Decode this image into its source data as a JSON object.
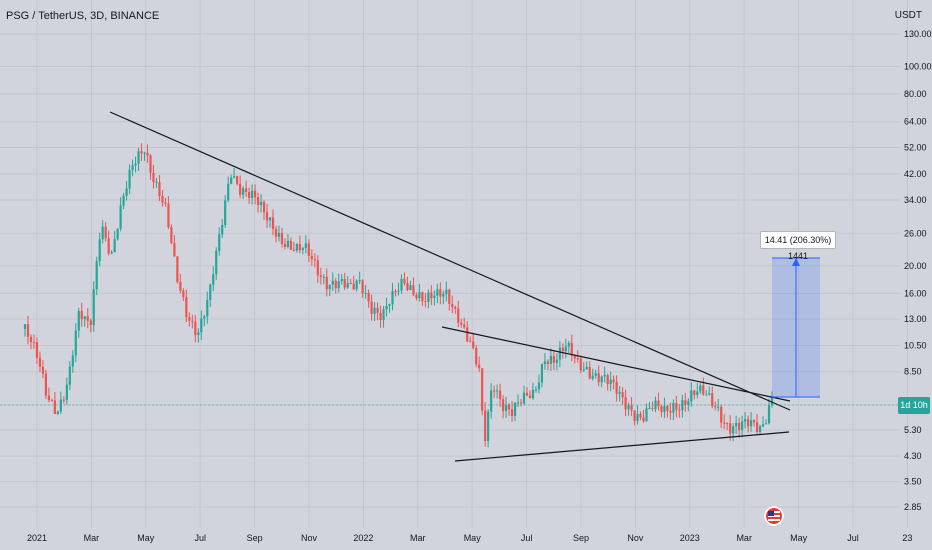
{
  "header": {
    "symbol": "PSG / TetherUS, 3D, BINANCE",
    "currency": "USDT"
  },
  "chart_data": {
    "type": "candlestick",
    "y_scale": "log",
    "y_ticks": [
      2.85,
      3.5,
      4.3,
      5.3,
      6.5,
      8.5,
      10.5,
      13.0,
      16.0,
      20.0,
      26.0,
      34.0,
      42.0,
      52.0,
      64.0,
      80.0,
      100.0,
      130.0
    ],
    "y_tick_labels": [
      "2.85",
      "3.50",
      "4.30",
      "5.30",
      "",
      "8.50",
      "10.50",
      "13.00",
      "16.00",
      "20.00",
      "26.00",
      "34.00",
      "42.00",
      "52.00",
      "64.00",
      "80.00",
      "100.00",
      "130.00"
    ],
    "x_ticks": [
      "2021",
      "Mar",
      "May",
      "Jul",
      "Sep",
      "Nov",
      "2022",
      "Mar",
      "May",
      "Jul",
      "Sep",
      "Nov",
      "2023",
      "Mar",
      "May",
      "Jul",
      "23"
    ],
    "current_price_label": "1d 10h",
    "measure_label": "14.41 (206.30%) 1441",
    "colors": {
      "up": "#26a69a",
      "down": "#ef5350",
      "line": "#131722",
      "measure": "#2962ff"
    },
    "price_path": [
      [
        0,
        12
      ],
      [
        6,
        9
      ],
      [
        10,
        7
      ],
      [
        15,
        6.5
      ],
      [
        20,
        8
      ],
      [
        25,
        13
      ],
      [
        30,
        12
      ],
      [
        35,
        30
      ],
      [
        40,
        22
      ],
      [
        45,
        32
      ],
      [
        50,
        45
      ],
      [
        55,
        55
      ],
      [
        60,
        40
      ],
      [
        65,
        30
      ],
      [
        70,
        18
      ],
      [
        75,
        14
      ],
      [
        80,
        12
      ],
      [
        85,
        15
      ],
      [
        90,
        25
      ],
      [
        95,
        45
      ],
      [
        100,
        38
      ],
      [
        105,
        34
      ],
      [
        110,
        30
      ],
      [
        115,
        28
      ],
      [
        120,
        25
      ],
      [
        125,
        22
      ],
      [
        130,
        22
      ],
      [
        135,
        20
      ],
      [
        140,
        18
      ],
      [
        145,
        17
      ],
      [
        150,
        16
      ],
      [
        155,
        18
      ],
      [
        160,
        15
      ],
      [
        165,
        13
      ],
      [
        170,
        15
      ],
      [
        175,
        18
      ],
      [
        180,
        17
      ],
      [
        185,
        15
      ],
      [
        190,
        15
      ],
      [
        195,
        16
      ],
      [
        200,
        14
      ],
      [
        205,
        11
      ],
      [
        210,
        8
      ],
      [
        212,
        4.5
      ],
      [
        216,
        8
      ],
      [
        220,
        7
      ],
      [
        225,
        6.2
      ],
      [
        230,
        6.5
      ],
      [
        235,
        7
      ],
      [
        240,
        10
      ],
      [
        245,
        9.5
      ],
      [
        250,
        10
      ],
      [
        255,
        9
      ],
      [
        260,
        9
      ],
      [
        265,
        8.3
      ],
      [
        270,
        7.5
      ],
      [
        275,
        6.8
      ],
      [
        280,
        6.5
      ],
      [
        285,
        6
      ],
      [
        290,
        6.2
      ],
      [
        295,
        6
      ],
      [
        300,
        6.7
      ],
      [
        305,
        6.9
      ],
      [
        310,
        7
      ],
      [
        315,
        6.8
      ],
      [
        320,
        6.5
      ],
      [
        325,
        5.6
      ],
      [
        330,
        5.3
      ],
      [
        335,
        5.4
      ],
      [
        340,
        5.5
      ],
      [
        345,
        7.2
      ]
    ]
  }
}
